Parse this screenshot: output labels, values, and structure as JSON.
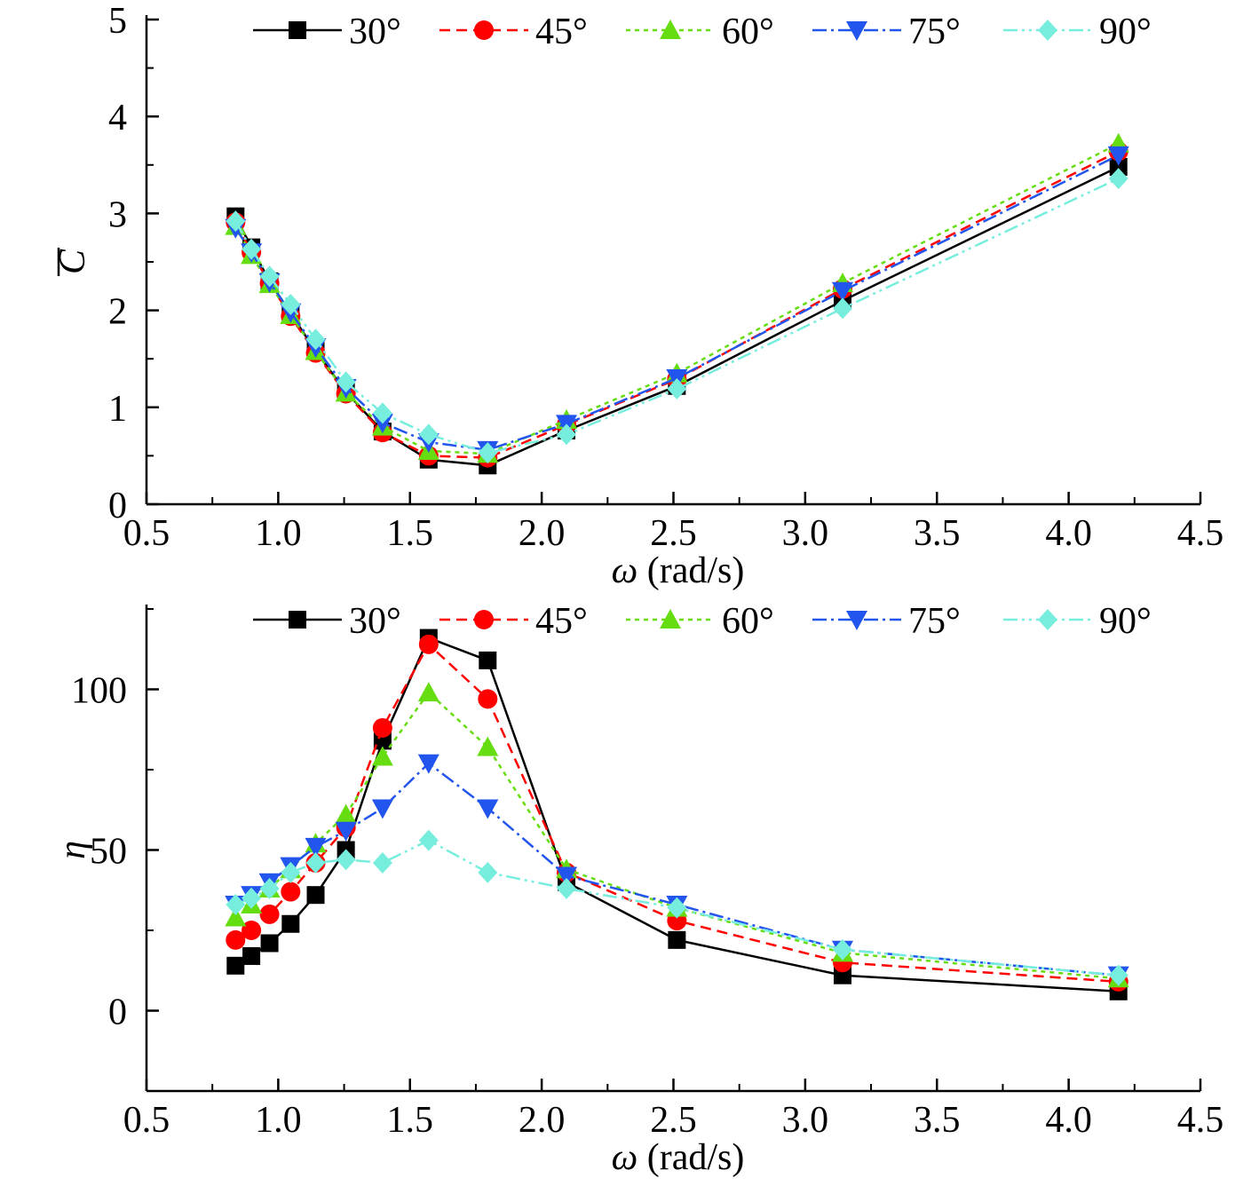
{
  "chart_data": [
    {
      "type": "line",
      "xlabel_symbol": "ω",
      "xlabel_unit": " (rad/s)",
      "ylabel": "C",
      "xlim": [
        0.5,
        4.5
      ],
      "ylim": [
        0,
        5
      ],
      "xticks": [
        "0.5",
        "1.0",
        "1.5",
        "2.0",
        "2.5",
        "3.0",
        "3.5",
        "4.0",
        "4.5"
      ],
      "yticks": [
        "0",
        "1",
        "2",
        "3",
        "4",
        "5"
      ],
      "legend": "top",
      "grid": false,
      "x": [
        0.838,
        0.898,
        0.967,
        1.047,
        1.142,
        1.257,
        1.396,
        1.571,
        1.795,
        2.094,
        2.513,
        3.142,
        4.189
      ],
      "series": [
        {
          "name": "30°",
          "color": "#000000",
          "marker": "square",
          "dash": "",
          "values": [
            2.97,
            2.65,
            2.3,
            1.97,
            1.58,
            1.16,
            0.75,
            0.46,
            0.4,
            0.76,
            1.22,
            2.1,
            3.48
          ]
        },
        {
          "name": "45°",
          "color": "#ff0000",
          "marker": "circle",
          "dash": "12,7",
          "values": [
            2.91,
            2.6,
            2.28,
            1.94,
            1.56,
            1.14,
            0.74,
            0.5,
            0.48,
            0.82,
            1.29,
            2.22,
            3.64
          ]
        },
        {
          "name": "60°",
          "color": "#66dd11",
          "marker": "triangle-up",
          "dash": "5,5",
          "values": [
            2.87,
            2.57,
            2.27,
            1.95,
            1.58,
            1.15,
            0.8,
            0.55,
            0.52,
            0.87,
            1.35,
            2.28,
            3.72
          ]
        },
        {
          "name": "75°",
          "color": "#2255ee",
          "marker": "triangle-down",
          "dash": "16,5,3,5",
          "values": [
            2.85,
            2.6,
            2.29,
            1.98,
            1.62,
            1.2,
            0.84,
            0.64,
            0.56,
            0.83,
            1.3,
            2.2,
            3.6
          ]
        },
        {
          "name": "90°",
          "color": "#77eedd",
          "marker": "diamond",
          "dash": "16,5,3,5,3,5",
          "values": [
            2.92,
            2.63,
            2.35,
            2.06,
            1.7,
            1.26,
            0.94,
            0.72,
            0.53,
            0.72,
            1.19,
            2.02,
            3.36
          ]
        }
      ]
    },
    {
      "type": "line",
      "xlabel_symbol": "ω",
      "xlabel_unit": " (rad/s)",
      "ylabel": "η",
      "xlim": [
        0.5,
        4.5
      ],
      "ylim": [
        -25,
        125
      ],
      "xticks": [
        "0.5",
        "1.0",
        "1.5",
        "2.0",
        "2.5",
        "3.0",
        "3.5",
        "4.0",
        "4.5"
      ],
      "yticks": [
        "0",
        "50",
        "100"
      ],
      "legend": "top",
      "grid": false,
      "x": [
        0.838,
        0.898,
        0.967,
        1.047,
        1.142,
        1.257,
        1.396,
        1.571,
        1.795,
        2.094,
        2.513,
        3.142,
        4.189
      ],
      "series": [
        {
          "name": "30°",
          "color": "#000000",
          "marker": "square",
          "dash": "",
          "values": [
            14,
            17,
            21,
            27,
            36,
            50,
            84,
            116,
            109,
            40,
            22,
            11,
            6
          ]
        },
        {
          "name": "45°",
          "color": "#ff0000",
          "marker": "circle",
          "dash": "12,7",
          "values": [
            22,
            25,
            30,
            37,
            46,
            57,
            88,
            114,
            97,
            43,
            28,
            15,
            9
          ]
        },
        {
          "name": "60°",
          "color": "#66dd11",
          "marker": "triangle-up",
          "dash": "5,5",
          "values": [
            29,
            33,
            38,
            44,
            52,
            61,
            79,
            99,
            82,
            44,
            32,
            18,
            10
          ]
        },
        {
          "name": "75°",
          "color": "#2255ee",
          "marker": "triangle-down",
          "dash": "16,5,3,5",
          "values": [
            33,
            36,
            40,
            45,
            51,
            56,
            63,
            77,
            63,
            42,
            33,
            19,
            11
          ]
        },
        {
          "name": "90°",
          "color": "#77eedd",
          "marker": "diamond",
          "dash": "16,5,3,5,3,5",
          "values": [
            33,
            35,
            38,
            43,
            46,
            47,
            46,
            53,
            43,
            38,
            32,
            19,
            11
          ]
        }
      ]
    }
  ]
}
